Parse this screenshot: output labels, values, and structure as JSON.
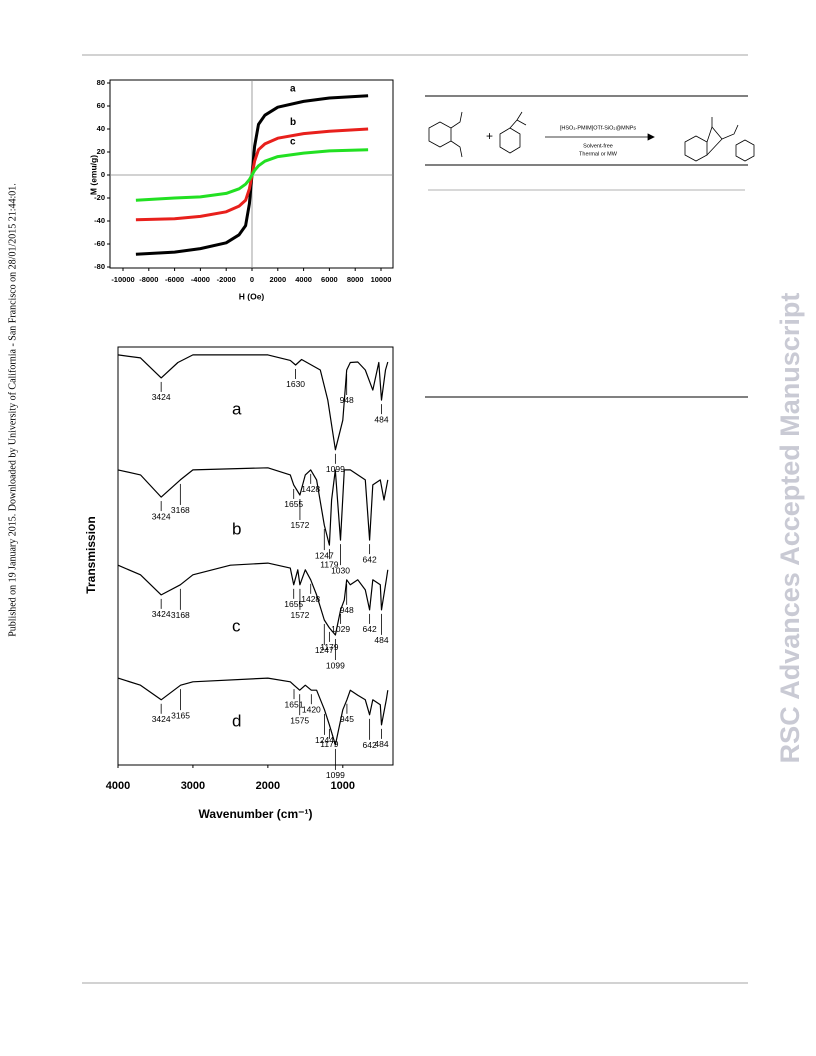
{
  "sidebar": "Published on 19 January 2015. Downloaded by University of California - San Francisco on 28/01/2015 21:44:01.",
  "watermark": "RSC Advances Accepted Manuscript",
  "scheme": {
    "reagent": "[HSO₃-PMIM]OTf-SiO₂@MNPs",
    "conditions": [
      "Solvent-free",
      "Thermal or MW"
    ]
  },
  "chart_data": [
    {
      "type": "line",
      "xlabel": "H (Oe)",
      "ylabel": "M (emu/g)",
      "xlim": [
        -10000,
        10000
      ],
      "ylim": [
        -80,
        80
      ],
      "xticks": [
        -10000,
        -8000,
        -6000,
        -4000,
        -2000,
        0,
        2000,
        4000,
        6000,
        8000,
        10000
      ],
      "yticks": [
        -80,
        -60,
        -40,
        -20,
        0,
        20,
        40,
        60,
        80
      ],
      "x": [
        -9000,
        -6000,
        -4000,
        -2000,
        -1000,
        -500,
        -200,
        0,
        200,
        500,
        1000,
        2000,
        4000,
        6000,
        9000
      ],
      "series": [
        {
          "name": "a",
          "color": "#000000",
          "values": [
            -69,
            -67,
            -64,
            -59,
            -52,
            -44,
            -25,
            0,
            25,
            44,
            52,
            59,
            64,
            67,
            69
          ]
        },
        {
          "name": "b",
          "color": "#e8201c",
          "values": [
            -39,
            -38,
            -36,
            -32,
            -27,
            -22,
            -12,
            0,
            12,
            22,
            27,
            32,
            36,
            38,
            40
          ]
        },
        {
          "name": "c",
          "color": "#22e022",
          "values": [
            -22,
            -20,
            -19,
            -16,
            -12,
            -8,
            -4,
            0,
            4,
            8,
            12,
            16,
            19,
            21,
            22
          ]
        }
      ]
    },
    {
      "type": "line",
      "xlabel": "Wavenumber (cm⁻¹)",
      "ylabel": "Transmission",
      "xlim": [
        4000,
        330
      ],
      "ylim": [
        0,
        100
      ],
      "xticks": [
        4000,
        3000,
        2000,
        1000
      ],
      "series": [
        {
          "name": "a",
          "color": "#000000",
          "x": [
            4000,
            3700,
            3424,
            3200,
            3000,
            2000,
            1700,
            1630,
            1550,
            1300,
            1200,
            1099,
            1000,
            948,
            900,
            800,
            700,
            600,
            520,
            484,
            430,
            400
          ],
          "values": [
            98.1,
            97.4,
            92.6,
            96.3,
            98.1,
            98.1,
            96.8,
            95.7,
            97.0,
            94.5,
            87.3,
            75.4,
            82.5,
            94.5,
            96.3,
            96.4,
            94.5,
            89.7,
            96.3,
            87.3,
            94.5,
            96.4
          ],
          "peaks": [
            3424,
            1630,
            1099,
            948,
            484
          ]
        },
        {
          "name": "b",
          "color": "#000000",
          "x": [
            4000,
            3700,
            3424,
            3168,
            3000,
            2000,
            1700,
            1655,
            1572,
            1500,
            1428,
            1350,
            1247,
            1179,
            1150,
            1100,
            1030,
            980,
            900,
            800,
            700,
            642,
            600,
            500,
            450,
            400
          ],
          "values": [
            70.6,
            69.4,
            64.1,
            68.2,
            70.6,
            71.1,
            69.4,
            67.0,
            64.6,
            69.4,
            70.6,
            68.2,
            57.4,
            52.6,
            63.4,
            70.6,
            53.8,
            70.6,
            70.6,
            69.4,
            68.2,
            53.8,
            67.0,
            68.2,
            63.4,
            68.2
          ],
          "peaks": [
            3424,
            3168,
            1655,
            1572,
            1428,
            1247,
            1179,
            1030,
            642
          ]
        },
        {
          "name": "c",
          "color": "#000000",
          "x": [
            4000,
            3700,
            3424,
            3168,
            3000,
            2500,
            2000,
            1700,
            1655,
            1600,
            1572,
            1500,
            1428,
            1350,
            1247,
            1179,
            1099,
            1029,
            980,
            948,
            900,
            800,
            700,
            642,
            600,
            500,
            484,
            420,
            400
          ],
          "values": [
            47.8,
            45.5,
            40.7,
            43.1,
            45.5,
            47.8,
            48.3,
            47.1,
            43.1,
            46.7,
            43.1,
            46.7,
            44.3,
            40.7,
            34.7,
            32.8,
            31.1,
            37.1,
            39.5,
            44.3,
            43.1,
            44.3,
            41.9,
            37.1,
            44.3,
            43.1,
            37.1,
            44.3,
            46.7
          ],
          "peaks": [
            3424,
            3168,
            1655,
            1572,
            1428,
            1247,
            1179,
            1099,
            1029,
            948,
            642,
            484
          ]
        },
        {
          "name": "d",
          "color": "#000000",
          "x": [
            4000,
            3700,
            3424,
            3165,
            3000,
            2000,
            1700,
            1651,
            1575,
            1500,
            1420,
            1350,
            1244,
            1179,
            1099,
            1000,
            945,
            900,
            800,
            700,
            642,
            600,
            500,
            484,
            420,
            400
          ],
          "values": [
            20.8,
            19.1,
            15.6,
            19.1,
            19.9,
            20.8,
            19.9,
            19.1,
            17.9,
            19.1,
            17.9,
            17.9,
            13.2,
            9.6,
            4.8,
            13.2,
            15.6,
            17.9,
            16.7,
            15.6,
            12.0,
            15.6,
            14.4,
            9.6,
            15.6,
            17.9
          ],
          "peaks": [
            3424,
            3165,
            1651,
            1575,
            1420,
            1244,
            1179,
            1099,
            945,
            642,
            484
          ]
        }
      ]
    }
  ]
}
